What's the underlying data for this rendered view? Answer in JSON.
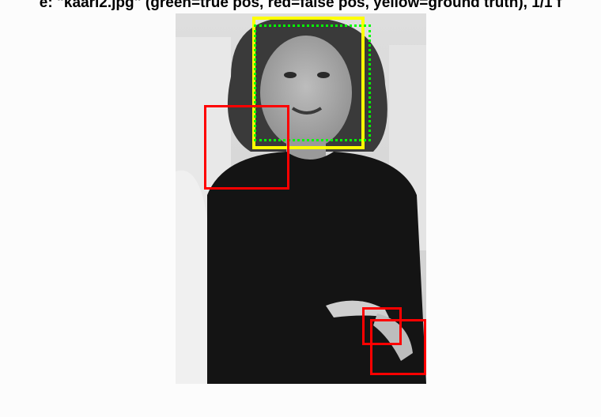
{
  "figure": {
    "title": "e: \"kaari2.jpg\" (green=true pos, red=false pos, yellow=ground truth), 1/1 f"
  },
  "legend_colors": {
    "true_pos": "#00ff00",
    "false_pos": "#ff0000",
    "ground_truth": "#ffff00"
  },
  "detections": {
    "ground_truth_count": 1,
    "true_positive_count": 1,
    "false_positive_count": 3
  }
}
